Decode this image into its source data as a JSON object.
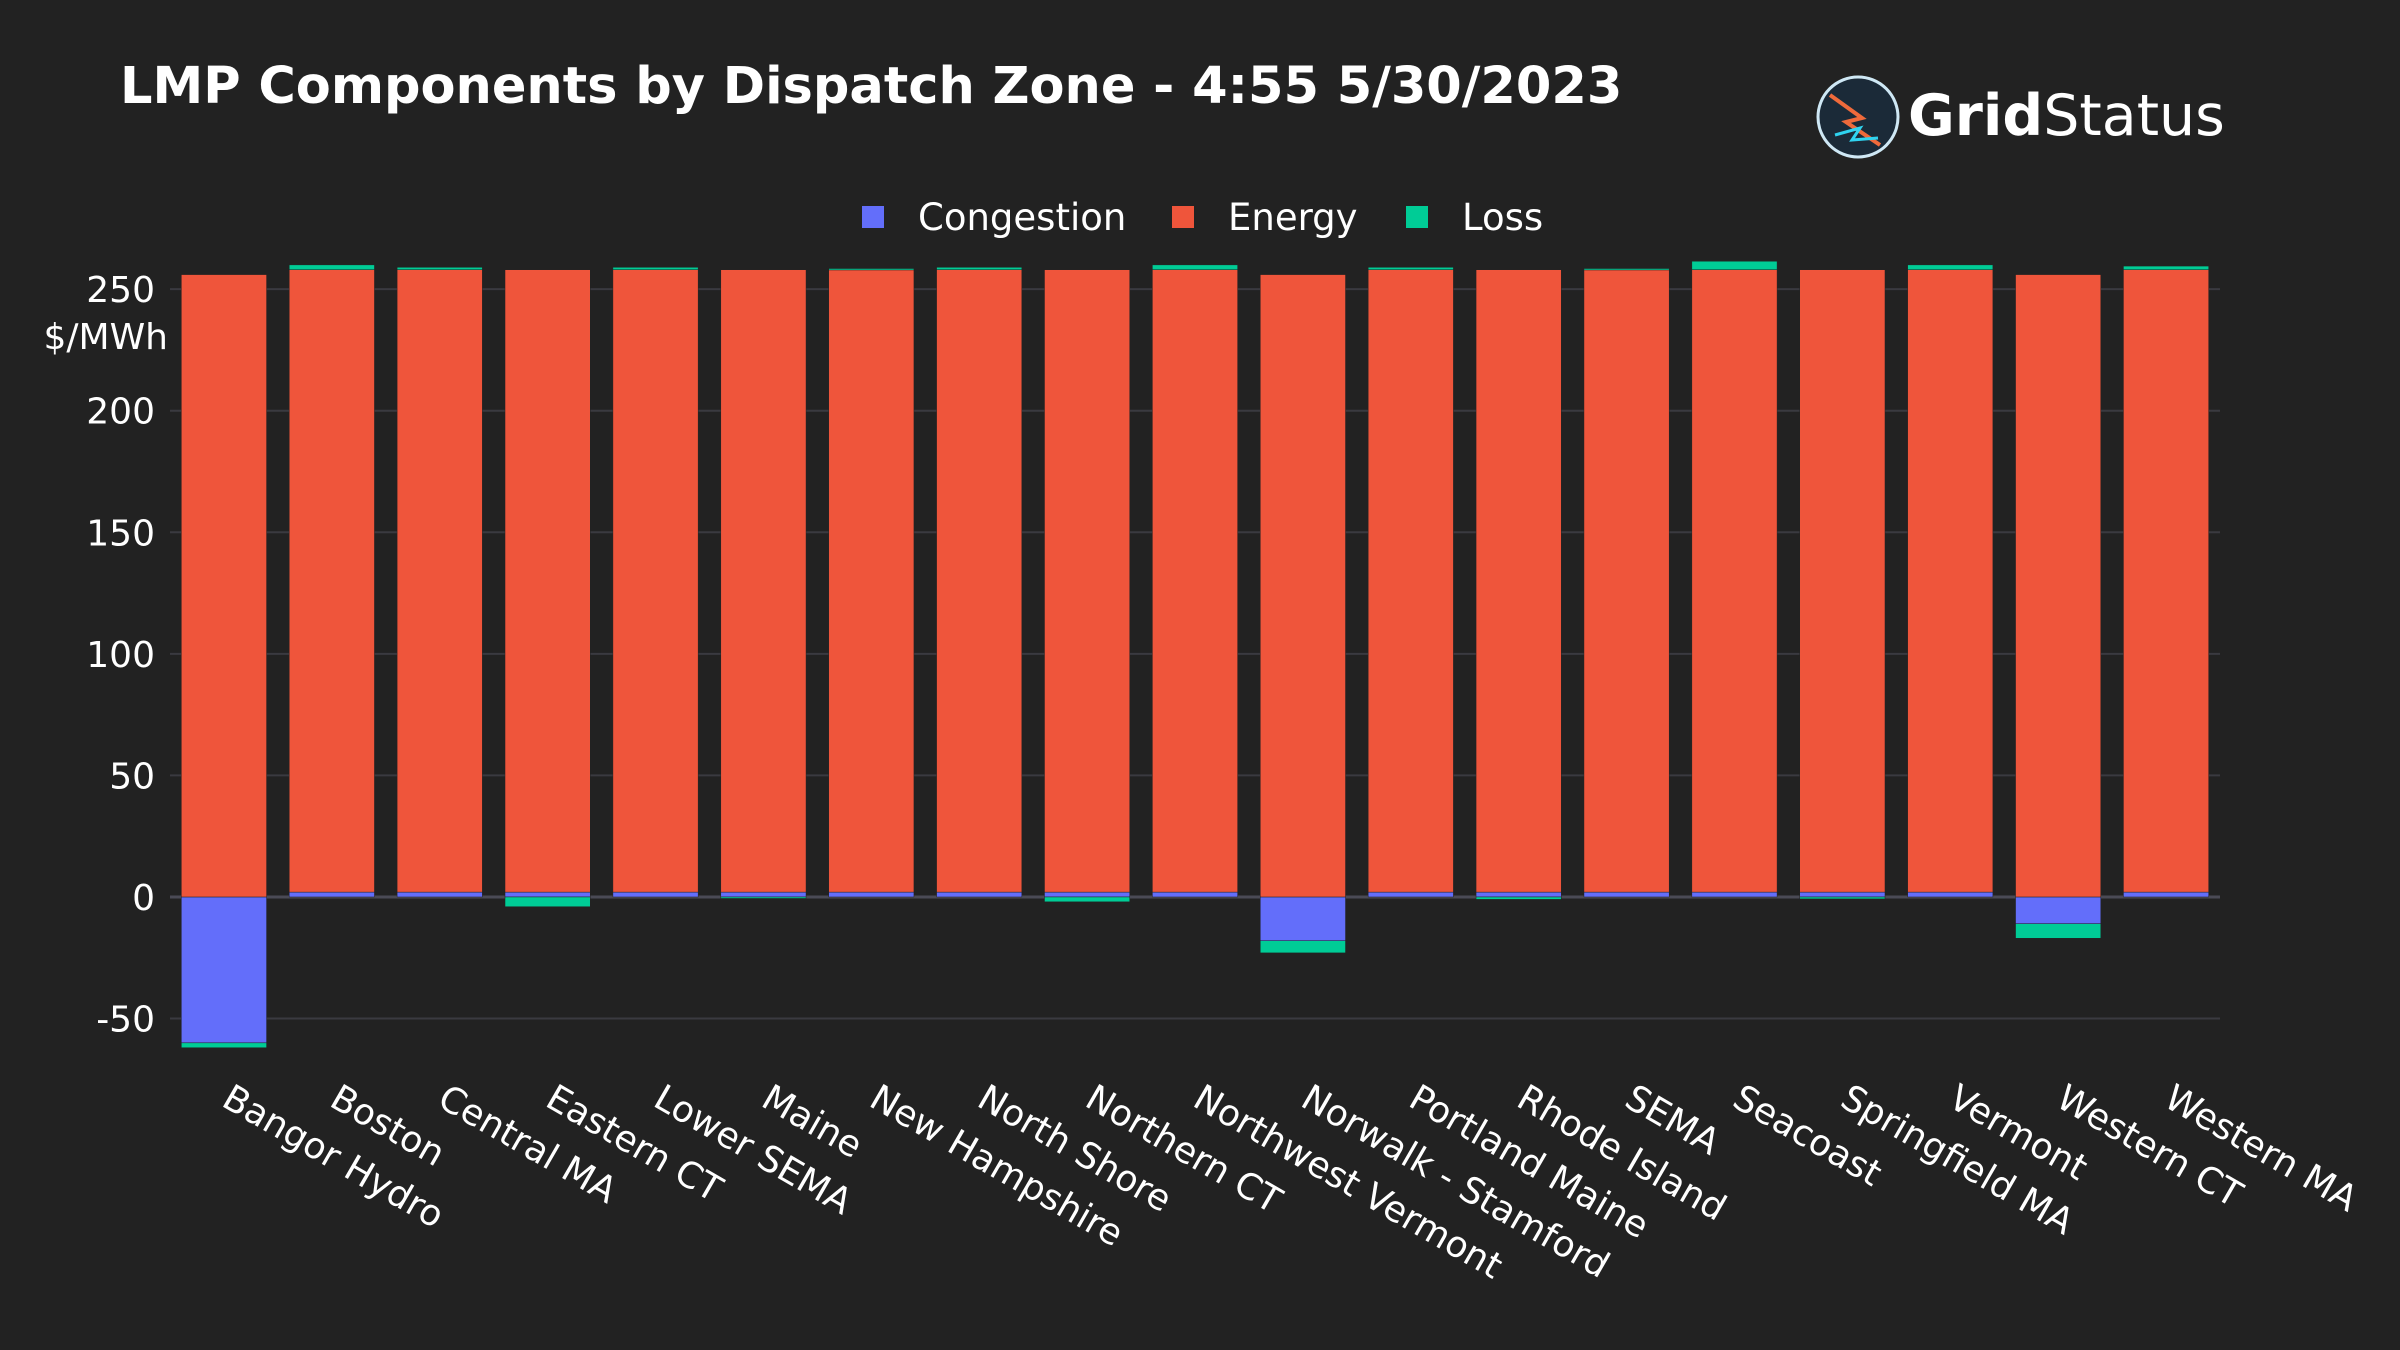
{
  "logo": {
    "part1": "Grid",
    "part2": "Status"
  },
  "colors": {
    "background": "#222222",
    "grid": "#3a3a40",
    "text": "#ffffff",
    "zero_line": "#4a4a55"
  },
  "chart_data": {
    "type": "bar",
    "stacked": true,
    "title": "LMP Components by Dispatch Zone - 4:55 5/30/2023",
    "ylabel": "$/MWh",
    "ylim": [
      -65,
      262
    ],
    "yticks": [
      -50,
      0,
      50,
      100,
      150,
      200,
      250
    ],
    "legend_position": "top-center",
    "categories": [
      "Bangor Hydro",
      "Boston",
      "Central MA",
      "Eastern CT",
      "Lower SEMA",
      "Maine",
      "New Hampshire",
      "North Shore",
      "Northern CT",
      "Northwest Vermont",
      "Norwalk - Stamford",
      "Portland Maine",
      "Rhode Island",
      "SEMA",
      "Seacoast",
      "Springfield MA",
      "Vermont",
      "Western CT",
      "Western MA"
    ],
    "series": [
      {
        "name": "Congestion",
        "color": "#636efa",
        "values": [
          -60,
          2,
          2,
          2,
          2,
          2,
          2,
          2,
          2,
          2,
          -18,
          2,
          2,
          2,
          2,
          2,
          2,
          -11,
          2
        ]
      },
      {
        "name": "Energy",
        "color": "#ef553b",
        "values": [
          256,
          256,
          256,
          256,
          256,
          256,
          256,
          256,
          256,
          256,
          256,
          256,
          256,
          256,
          256,
          256,
          256,
          256,
          256
        ]
      },
      {
        "name": "Loss",
        "color": "#00cc96",
        "values": [
          -2,
          2,
          1,
          -4,
          1,
          -0.3,
          0.5,
          1,
          -2,
          2,
          -5,
          1,
          -1,
          0.5,
          3.5,
          -0.8,
          2,
          -6,
          1.5
        ]
      }
    ]
  }
}
